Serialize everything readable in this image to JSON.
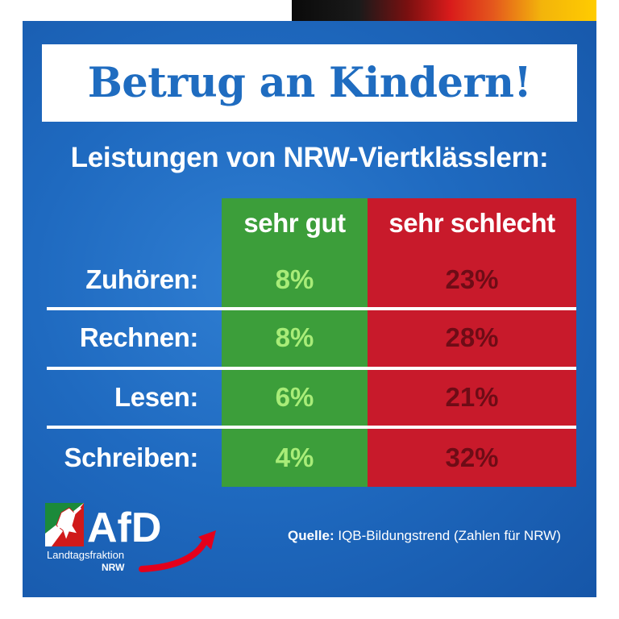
{
  "title": "Betrug an Kindern!",
  "subtitle": "Leistungen von NRW-Viertklässlern:",
  "columns": {
    "good": "sehr gut",
    "bad": "sehr schlecht"
  },
  "rows": [
    {
      "label": "Zuhören:",
      "good": "8%",
      "bad": "23%"
    },
    {
      "label": "Rechnen:",
      "good": "8%",
      "bad": "28%"
    },
    {
      "label": "Lesen:",
      "good": "6%",
      "bad": "21%"
    },
    {
      "label": "Schreiben:",
      "good": "4%",
      "bad": "32%"
    }
  ],
  "source": {
    "prefix": "Quelle:",
    "text": "IQB-Bildungstrend (Zahlen für NRW)"
  },
  "logo": {
    "name": "AfD",
    "line1": "Landtagsfraktion",
    "line2": "NRW"
  },
  "colors": {
    "background_blue": "#1f6ac0",
    "good_green": "#3c9e3a",
    "bad_red": "#c81a2b",
    "logo_red": "#e3001b"
  }
}
